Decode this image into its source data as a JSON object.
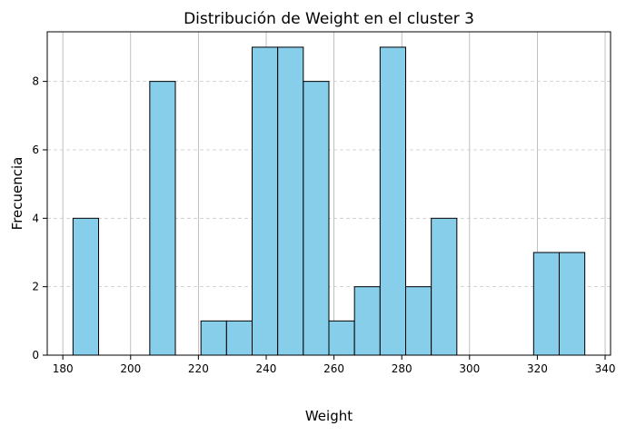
{
  "chart_data": {
    "type": "bar",
    "subtype": "histogram",
    "title": "Distribución de Weight en el cluster 3",
    "xlabel": "Weight",
    "ylabel": "Frecuencia",
    "bin_start": 183.0,
    "bin_width": 7.55,
    "counts": [
      4,
      0,
      0,
      8,
      0,
      1,
      1,
      9,
      9,
      8,
      1,
      2,
      9,
      2,
      4,
      0,
      0,
      0,
      3,
      3
    ],
    "xlim": [
      175.4,
      341.6
    ],
    "ylim": [
      0,
      9.45
    ],
    "xticks": [
      180,
      200,
      220,
      240,
      260,
      280,
      300,
      320,
      340
    ],
    "yticks": [
      0,
      2,
      4,
      6,
      8
    ],
    "grid": "both",
    "bar_color": "#87CEEB",
    "edge_color": "#000000",
    "y_grid_color": "#c8c8c8",
    "x_grid_color": "#b0b0b0"
  }
}
